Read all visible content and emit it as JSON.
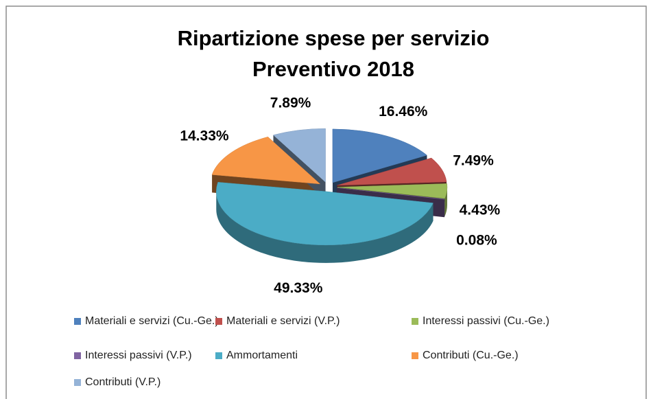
{
  "chart_data": {
    "type": "pie3d",
    "title": [
      "Ripartizione spese per servizio",
      "Preventivo 2018"
    ],
    "categories": [
      "Materiali e servizi (Cu.-Ge.)",
      "Materiali e servizi (V.P.)",
      "Interessi passivi (Cu.-Ge.)",
      "Interessi passivi (V.P.)",
      "Ammortamenti",
      "Contributi (Cu.-Ge.)",
      "Contributi (V.P.)"
    ],
    "values": [
      16.46,
      7.49,
      4.43,
      0.08,
      49.33,
      14.33,
      7.89
    ],
    "value_labels": [
      "16.46%",
      "7.49%",
      "4.43%",
      "0.08%",
      "49.33%",
      "14.33%",
      "7.89%"
    ],
    "colors": [
      "#4f81bd",
      "#c0504d",
      "#9bbb59",
      "#8064a2",
      "#4bacc6",
      "#f79646",
      "#95b3d7"
    ],
    "legend": "bottom"
  }
}
